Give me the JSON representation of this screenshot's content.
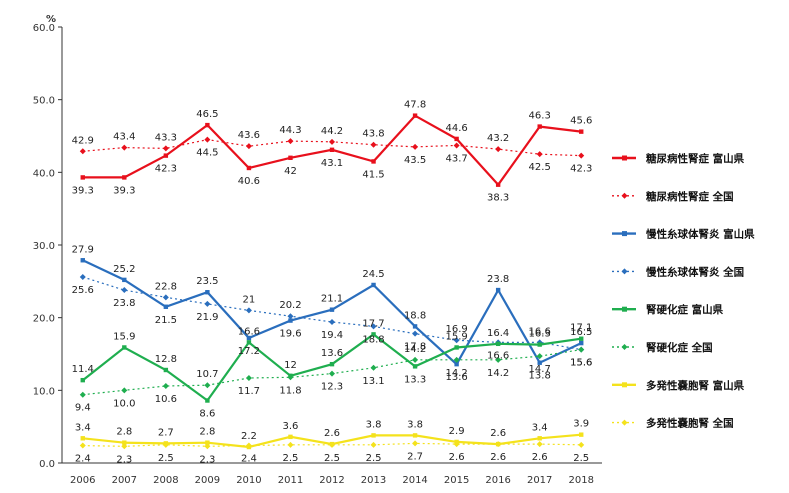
{
  "chart_data": {
    "type": "line",
    "title": "",
    "xlabel": "",
    "ylabel": "",
    "y_unit": "%",
    "ylim": [
      0,
      60
    ],
    "yticks": [
      "0.0",
      "10.0",
      "20.0",
      "30.0",
      "40.0",
      "50.0",
      "60.0"
    ],
    "ytick_values": [
      0,
      10,
      20,
      30,
      40,
      50,
      60
    ],
    "x": [
      "2006",
      "2007",
      "2008",
      "2009",
      "2010",
      "2011",
      "2012",
      "2013",
      "2014",
      "2015",
      "2016",
      "2017",
      "2018"
    ],
    "grid": false,
    "legend_position": "right",
    "series": [
      {
        "name": "糖尿病性腎症 富山県",
        "color": "#e8101c",
        "style": "solid",
        "values": [
          39.3,
          39.3,
          42.3,
          46.5,
          40.6,
          42,
          43.1,
          41.5,
          47.8,
          44.6,
          38.3,
          46.3,
          45.6
        ],
        "labels": [
          "39.3",
          "39.3",
          "42.3",
          "46.5",
          "40.6",
          "42",
          "43.1",
          "41.5",
          "47.8",
          "44.6",
          "38.3",
          "46.3",
          "45.6"
        ]
      },
      {
        "name": "糖尿病性腎症 全国",
        "color": "#e8101c",
        "style": "dashed",
        "values": [
          42.9,
          43.4,
          43.3,
          44.5,
          43.6,
          44.3,
          44.2,
          43.8,
          43.5,
          43.7,
          43.2,
          42.5,
          42.3
        ],
        "labels": [
          "42.9",
          "43.4",
          "43.3",
          "44.5",
          "43.6",
          "44.3",
          "44.2",
          "43.8",
          "43.5",
          "43.7",
          "43.2",
          "42.5",
          "42.3"
        ]
      },
      {
        "name": "慢性糸球体腎炎 富山県",
        "color": "#2a6ebd",
        "style": "solid",
        "values": [
          27.9,
          25.2,
          21.5,
          23.5,
          17.2,
          19.6,
          21.1,
          24.5,
          18.8,
          13.6,
          23.8,
          13.8,
          16.5
        ],
        "labels": [
          "27.9",
          "25.2",
          "21.5",
          "23.5",
          "17.2",
          "19.6",
          "21.1",
          "24.5",
          "18.8",
          "13.6",
          "23.8",
          "13.8",
          "16.5"
        ]
      },
      {
        "name": "慢性糸球体腎炎 全国",
        "color": "#2a6ebd",
        "style": "dashed",
        "values": [
          25.6,
          23.8,
          22.8,
          21.9,
          21,
          20.2,
          19.4,
          18.8,
          17.8,
          16.9,
          16.6,
          16.6,
          15.6
        ],
        "labels": [
          "25.6",
          "23.8",
          "22.8",
          "21.9",
          "21",
          "20.2",
          "19.4",
          "18.8",
          "17.8",
          "16.9",
          "16.6",
          "16.6",
          "15.6"
        ]
      },
      {
        "name": "腎硬化症 富山県",
        "color": "#1fae4f",
        "style": "solid",
        "values": [
          11.4,
          15.9,
          12.8,
          8.6,
          16.6,
          12,
          13.6,
          17.7,
          13.3,
          15.9,
          16.4,
          16.3,
          17.1
        ],
        "labels": [
          "11.4",
          "15.9",
          "12.8",
          "8.6",
          "16.6",
          "12",
          "13.6",
          "17.7",
          "13.3",
          "15.9",
          "16.4",
          "16.3",
          "17.1"
        ]
      },
      {
        "name": "腎硬化症 全国",
        "color": "#1fae4f",
        "style": "dashed",
        "values": [
          9.4,
          10,
          10.6,
          10.7,
          11.7,
          11.8,
          12.3,
          13.1,
          14.2,
          14.2,
          14.2,
          14.7,
          15.6
        ],
        "labels": [
          "9.4",
          "10.0",
          "10.6",
          "10.7",
          "11.7",
          "11.8",
          "12.3",
          "13.1",
          "14.2",
          "14.2",
          "14.2",
          "14.7",
          "15.6"
        ]
      },
      {
        "name": "多発性嚢胞腎 富山県",
        "color": "#f4e21c",
        "style": "solid",
        "values": [
          3.4,
          2.8,
          2.7,
          2.8,
          2.2,
          3.6,
          2.6,
          3.8,
          3.8,
          2.9,
          2.6,
          3.4,
          3.9
        ],
        "labels": [
          "3.4",
          "2.8",
          "2.7",
          "2.8",
          "2.2",
          "3.6",
          "2.6",
          "3.8",
          "3.8",
          "2.9",
          "2.6",
          "3.4",
          "3.9"
        ]
      },
      {
        "name": "多発性嚢胞腎 全国",
        "color": "#f4e21c",
        "style": "dashed",
        "values": [
          2.4,
          2.3,
          2.5,
          2.3,
          2.4,
          2.5,
          2.5,
          2.5,
          2.7,
          2.6,
          2.6,
          2.6,
          2.5
        ],
        "labels": [
          "2.4",
          "2.3",
          "2.5",
          "2.3",
          "2.4",
          "2.5",
          "2.5",
          "2.5",
          "2.7",
          "2.6",
          "2.6",
          "2.6",
          "2.5"
        ]
      }
    ]
  }
}
